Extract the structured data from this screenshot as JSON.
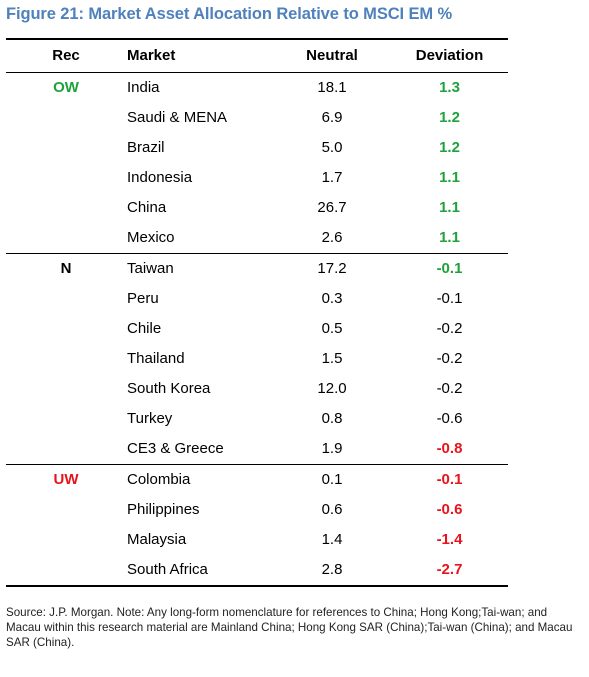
{
  "title": "Figure 21: Market Asset Allocation Relative to MSCI EM %",
  "headers": {
    "rec": "Rec",
    "market": "Market",
    "neutral": "Neutral",
    "deviation": "Deviation"
  },
  "groups": [
    {
      "rec": "OW",
      "rec_color": "#1fa23c",
      "rows": [
        {
          "market": "India",
          "neutral": "18.1",
          "deviation": "1.3",
          "dev_style": "green"
        },
        {
          "market": "Saudi & MENA",
          "neutral": "6.9",
          "deviation": "1.2",
          "dev_style": "green"
        },
        {
          "market": "Brazil",
          "neutral": "5.0",
          "deviation": "1.2",
          "dev_style": "green"
        },
        {
          "market": "Indonesia",
          "neutral": "1.7",
          "deviation": "1.1",
          "dev_style": "green"
        },
        {
          "market": "China",
          "neutral": "26.7",
          "deviation": "1.1",
          "dev_style": "green"
        },
        {
          "market": "Mexico",
          "neutral": "2.6",
          "deviation": "1.1",
          "dev_style": "green"
        }
      ]
    },
    {
      "rec": "N",
      "rec_color": "#000000",
      "rows": [
        {
          "market": "Taiwan",
          "neutral": "17.2",
          "deviation": "-0.1",
          "dev_style": "green"
        },
        {
          "market": "Peru",
          "neutral": "0.3",
          "deviation": "-0.1",
          "dev_style": "plain"
        },
        {
          "market": "Chile",
          "neutral": "0.5",
          "deviation": "-0.2",
          "dev_style": "plain"
        },
        {
          "market": "Thailand",
          "neutral": "1.5",
          "deviation": "-0.2",
          "dev_style": "plain"
        },
        {
          "market": "South Korea",
          "neutral": "12.0",
          "deviation": "-0.2",
          "dev_style": "plain"
        },
        {
          "market": "Turkey",
          "neutral": "0.8",
          "deviation": "-0.6",
          "dev_style": "plain"
        },
        {
          "market": "CE3 & Greece",
          "neutral": "1.9",
          "deviation": "-0.8",
          "dev_style": "red"
        }
      ]
    },
    {
      "rec": "UW",
      "rec_color": "#e8141c",
      "rows": [
        {
          "market": "Colombia",
          "neutral": "0.1",
          "deviation": "-0.1",
          "dev_style": "red"
        },
        {
          "market": "Philippines",
          "neutral": "0.6",
          "deviation": "-0.6",
          "dev_style": "red"
        },
        {
          "market": "Malaysia",
          "neutral": "1.4",
          "deviation": "-1.4",
          "dev_style": "red"
        },
        {
          "market": "South Africa",
          "neutral": "2.8",
          "deviation": "-2.7",
          "dev_style": "red"
        }
      ]
    }
  ],
  "source_note": "Source: J.P. Morgan. Note: Any long-form nomenclature for references to China; Hong Kong;Tai-wan; and Macau within this research material are Mainland China; Hong Kong SAR (China);Tai-wan (China); and Macau SAR (China)."
}
